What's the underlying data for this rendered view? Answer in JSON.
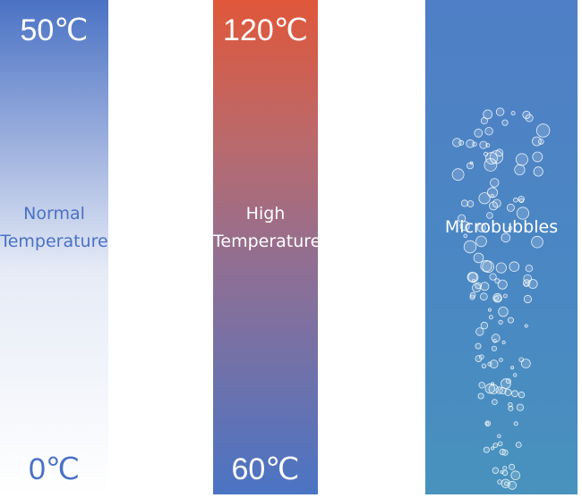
{
  "panels": [
    {
      "top": "50℃",
      "label_lines": [
        "Normal",
        "Temperature"
      ],
      "bottom": "0℃"
    },
    {
      "top": "120℃",
      "label_lines": [
        "High",
        "Temperature"
      ],
      "bottom": "60℃"
    },
    {
      "label_lines": [
        "Microbubbles"
      ]
    }
  ]
}
